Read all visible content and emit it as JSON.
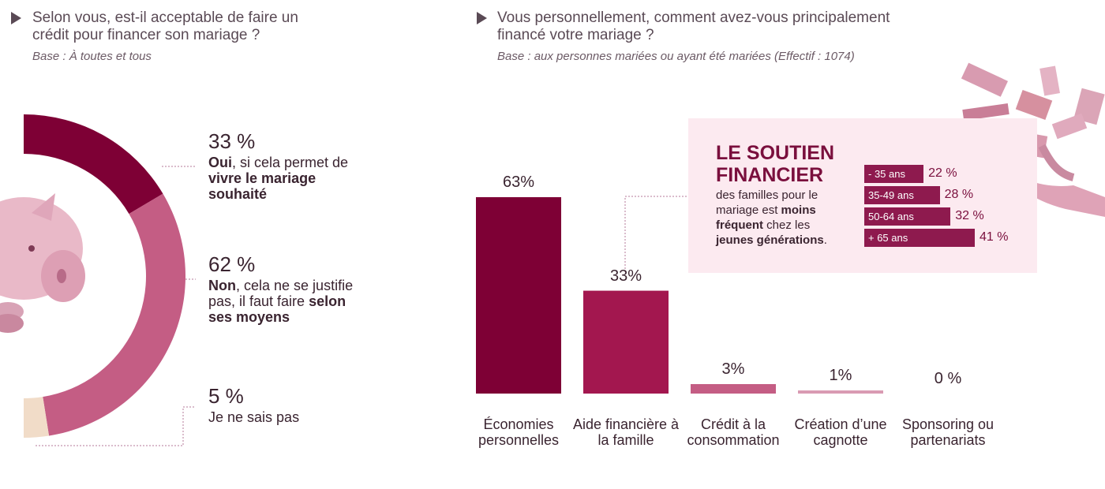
{
  "left": {
    "question": "Selon vous, est-il acceptable de faire un crédit pour financer son mariage ?",
    "question_line1": "Selon vous, est-il acceptable de faire un",
    "question_line2": "crédit pour financer son mariage ?",
    "base": "Base : À toutes et tous",
    "answers": [
      {
        "pct": "33 %",
        "parts": [
          {
            "t": "Oui",
            "b": true
          },
          {
            "t": ", si cela permet de ",
            "b": false
          },
          {
            "t": "vivre le mariage souhaité",
            "b": true
          }
        ]
      },
      {
        "pct": "62 %",
        "parts": [
          {
            "t": "Non",
            "b": true
          },
          {
            "t": ", cela ne se justifie pas, il faut faire ",
            "b": false
          },
          {
            "t": "selon ses moyens",
            "b": true
          }
        ]
      },
      {
        "pct": "5 %",
        "parts": [
          {
            "t": "Je ne sais pas",
            "b": false
          }
        ]
      }
    ]
  },
  "right": {
    "question_line1": "Vous personnellement, comment avez-vous principalement",
    "question_line2": "financé votre mariage ?",
    "base": "Base : aux personnes mariées ou ayant été mariées (Effectif : 1074)"
  },
  "callout": {
    "title_line1": "LE SOUTIEN",
    "title_line2": "FINANCIER",
    "text_parts": [
      {
        "t": "des familles pour le mariage est ",
        "b": false
      },
      {
        "t": "moins fréquent",
        "b": true
      },
      {
        "t": " chez les ",
        "b": false
      },
      {
        "t": "jeunes générations",
        "b": true
      },
      {
        "t": ".",
        "b": false
      }
    ],
    "age_groups": [
      {
        "label": "- 35 ans",
        "value": 22,
        "text": "22 %"
      },
      {
        "label": "35-49 ans",
        "value": 28,
        "text": "28 %"
      },
      {
        "label": "50-64 ans",
        "value": 32,
        "text": "32 %"
      },
      {
        "label": "+ 65 ans",
        "value": 41,
        "text": "41 %"
      }
    ]
  },
  "colors": {
    "dark": "#7e0035",
    "mid": "#a3174f",
    "light": "#c45d84",
    "lighter": "#d99ab2",
    "beige": "#f1dcc8"
  },
  "chart_data": [
    {
      "type": "pie",
      "title": "Selon vous, est-il acceptable de faire un crédit pour financer son mariage ?",
      "categories": [
        "Oui",
        "Non",
        "Je ne sais pas"
      ],
      "values": [
        33,
        62,
        5
      ],
      "unit": "%"
    },
    {
      "type": "bar",
      "title": "Vous personnellement, comment avez-vous principalement financé votre mariage ?",
      "categories": [
        "Économies personnelles",
        "Aide financière à la famille",
        "Crédit à la consommation",
        "Création d’une cagnotte",
        "Sponsoring ou partenariats"
      ],
      "values": [
        63,
        33,
        3,
        1,
        0
      ],
      "labels": [
        "63%",
        "33%",
        "3%",
        "1%",
        "0 %"
      ],
      "unit": "%"
    }
  ]
}
